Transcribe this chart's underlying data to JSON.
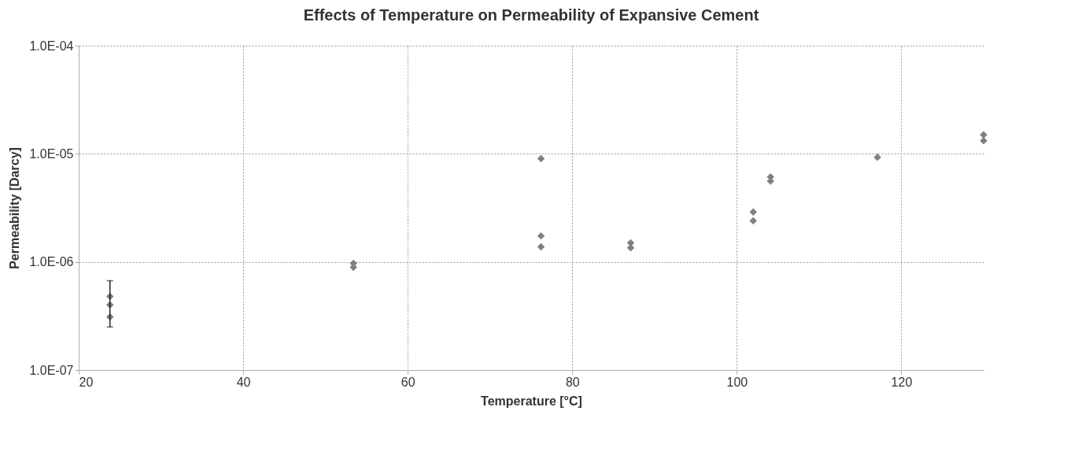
{
  "chart_data": {
    "type": "scatter",
    "title": "Effects of Temperature on Permeability of Expansive Cement",
    "xlabel": "Temperature [°C]",
    "ylabel": "Permeability [Darcy]",
    "x": [
      23.8,
      23.8,
      23.8,
      53.4,
      53.4,
      76.2,
      76.2,
      76.2,
      87.1,
      87.1,
      102,
      102,
      104.1,
      104.1,
      117.1,
      130,
      130
    ],
    "series": [
      {
        "color": "#808080",
        "values": [
          4.8e-07,
          4e-07,
          3.1e-07,
          9.7e-07,
          8.9e-07,
          9e-06,
          1.74e-06,
          1.38e-06,
          1.5e-06,
          1.35e-06,
          2.9e-06,
          2.4e-06,
          6.1e-06,
          5.6e-06,
          9.3e-06,
          1.5e-05,
          1.32e-05
        ],
        "errors": [
          null,
          [
            2.5e-07,
            6.7e-07
          ],
          null,
          null,
          null,
          null,
          null,
          null,
          null,
          null,
          null,
          null,
          null,
          null,
          null,
          null,
          null
        ]
      }
    ],
    "marker": "diamond",
    "log": "y",
    "grid": true,
    "xlim": [
      20,
      130
    ],
    "xticks": [
      20,
      40,
      60,
      80,
      100,
      120
    ],
    "ylim": [
      1e-07,
      0.0001
    ],
    "yticks": [
      {
        "value": 1e-07,
        "label": "1.0E-07"
      },
      {
        "value": 1e-06,
        "label": "1.0E-06"
      },
      {
        "value": 1e-05,
        "label": "1.0E-05"
      },
      {
        "value": 0.0001,
        "label": "1.0E-04"
      }
    ]
  }
}
